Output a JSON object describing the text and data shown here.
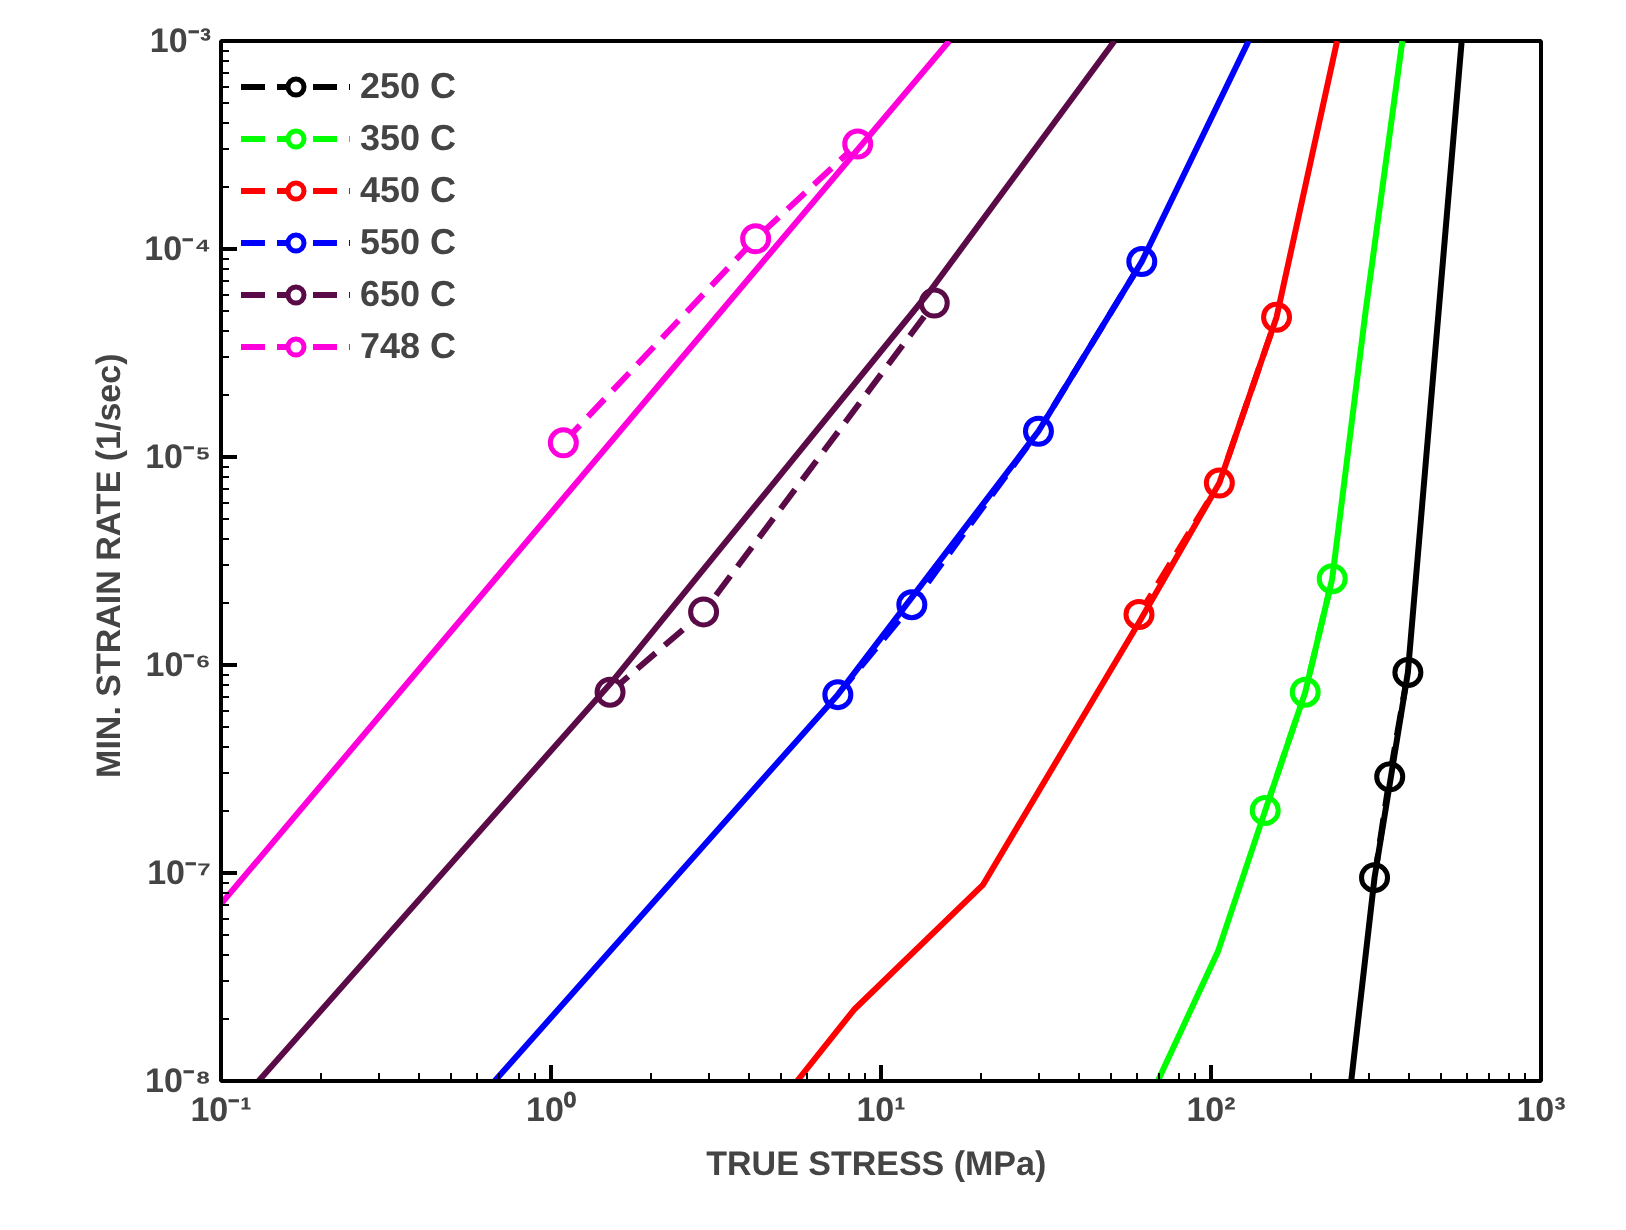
{
  "chart_data": {
    "type": "line",
    "xlabel": "TRUE STRESS  (MPa)",
    "ylabel": "MIN. STRAIN RATE  (1/sec)",
    "log": "xy",
    "grid": false,
    "legend": "top left",
    "xlim": [
      0.1,
      1000
    ],
    "ylim": [
      1e-08,
      0.001
    ],
    "xticks": [
      {
        "value": 0.1,
        "label": "10⁻¹"
      },
      {
        "value": 1,
        "label": "10⁰"
      },
      {
        "value": 10,
        "label": "10¹"
      },
      {
        "value": 100,
        "label": "10²"
      },
      {
        "value": 1000,
        "label": "10³"
      }
    ],
    "yticks": [
      {
        "value": 1e-08,
        "label": "10⁻⁸"
      },
      {
        "value": 1e-07,
        "label": "10⁻⁷"
      },
      {
        "value": 1e-06,
        "label": "10⁻⁶"
      },
      {
        "value": 1e-05,
        "label": "10⁻⁵"
      },
      {
        "value": 0.0001,
        "label": "10⁻⁴"
      },
      {
        "value": 0.001,
        "label": "10⁻³"
      }
    ],
    "series": [
      {
        "name": "250 C",
        "color": "#000000",
        "marker": "circle",
        "line_style": "dashed",
        "x": [
          313,
          348,
          395
        ],
        "values": [
          9.5e-08,
          2.9e-07,
          9.2e-07
        ]
      },
      {
        "name": "350 C",
        "color": "#00ff00",
        "marker": "circle",
        "line_style": "dashed",
        "x": [
          146,
          193,
          233
        ],
        "values": [
          2e-07,
          7.4e-07,
          2.6e-06
        ]
      },
      {
        "name": "450 C",
        "color": "#ff0000",
        "marker": "circle",
        "line_style": "dashed",
        "x": [
          60.5,
          106,
          158
        ],
        "values": [
          1.75e-06,
          7.5e-06,
          4.7e-05
        ]
      },
      {
        "name": "550 C",
        "color": "#0000ff",
        "marker": "circle",
        "line_style": "dashed",
        "x": [
          7.4,
          12.4,
          30,
          61.7
        ],
        "values": [
          7.2e-07,
          1.95e-06,
          1.33e-05,
          8.7e-05
        ]
      },
      {
        "name": "650 C",
        "color": "#5a0a46",
        "marker": "circle",
        "line_style": "dashed",
        "x": [
          1.51,
          2.9,
          14.5
        ],
        "values": [
          7.4e-07,
          1.8e-06,
          5.5e-05
        ]
      },
      {
        "name": "748 C",
        "color": "#ff00dd",
        "marker": "circle",
        "line_style": "dashed",
        "x": [
          1.09,
          4.17,
          8.5
        ],
        "values": [
          1.17e-05,
          0.000112,
          0.00032
        ]
      },
      {
        "color": "#000000",
        "marker": "none",
        "line_style": "solid",
        "x": [
          266,
          313,
          395,
          575
        ],
        "values": [
          1e-08,
          9.5e-08,
          9.2e-07,
          0.001
        ]
      },
      {
        "color": "#00ff00",
        "marker": "none",
        "line_style": "solid",
        "x": [
          69,
          105,
          146,
          193,
          233,
          294,
          380
        ],
        "values": [
          1e-08,
          4.2e-08,
          2e-07,
          7.4e-07,
          2.6e-06,
          5e-05,
          0.001
        ]
      },
      {
        "color": "#ff0000",
        "marker": "none",
        "line_style": "solid",
        "x": [
          5.57,
          8.28,
          20.4,
          60.5,
          106,
          158,
          241
        ],
        "values": [
          1e-08,
          2.2e-08,
          8.8e-08,
          1.6e-06,
          7.5e-06,
          4.7e-05,
          0.001
        ]
      },
      {
        "color": "#0000ff",
        "marker": "none",
        "line_style": "solid",
        "x": [
          0.675,
          7.4,
          30,
          61.7,
          130
        ],
        "values": [
          1e-08,
          7.2e-07,
          1.33e-05,
          8.7e-05,
          0.001
        ]
      },
      {
        "color": "#5a0a46",
        "marker": "none",
        "line_style": "solid",
        "x": [
          0.13,
          1.51,
          14.1,
          51
        ],
        "values": [
          1e-08,
          8.1e-07,
          6.3e-05,
          0.001
        ]
      },
      {
        "color": "#ff00dd",
        "marker": "none",
        "line_style": "solid",
        "x": [
          0.1,
          16.1
        ],
        "values": [
          7.1e-08,
          0.001
        ]
      }
    ]
  }
}
